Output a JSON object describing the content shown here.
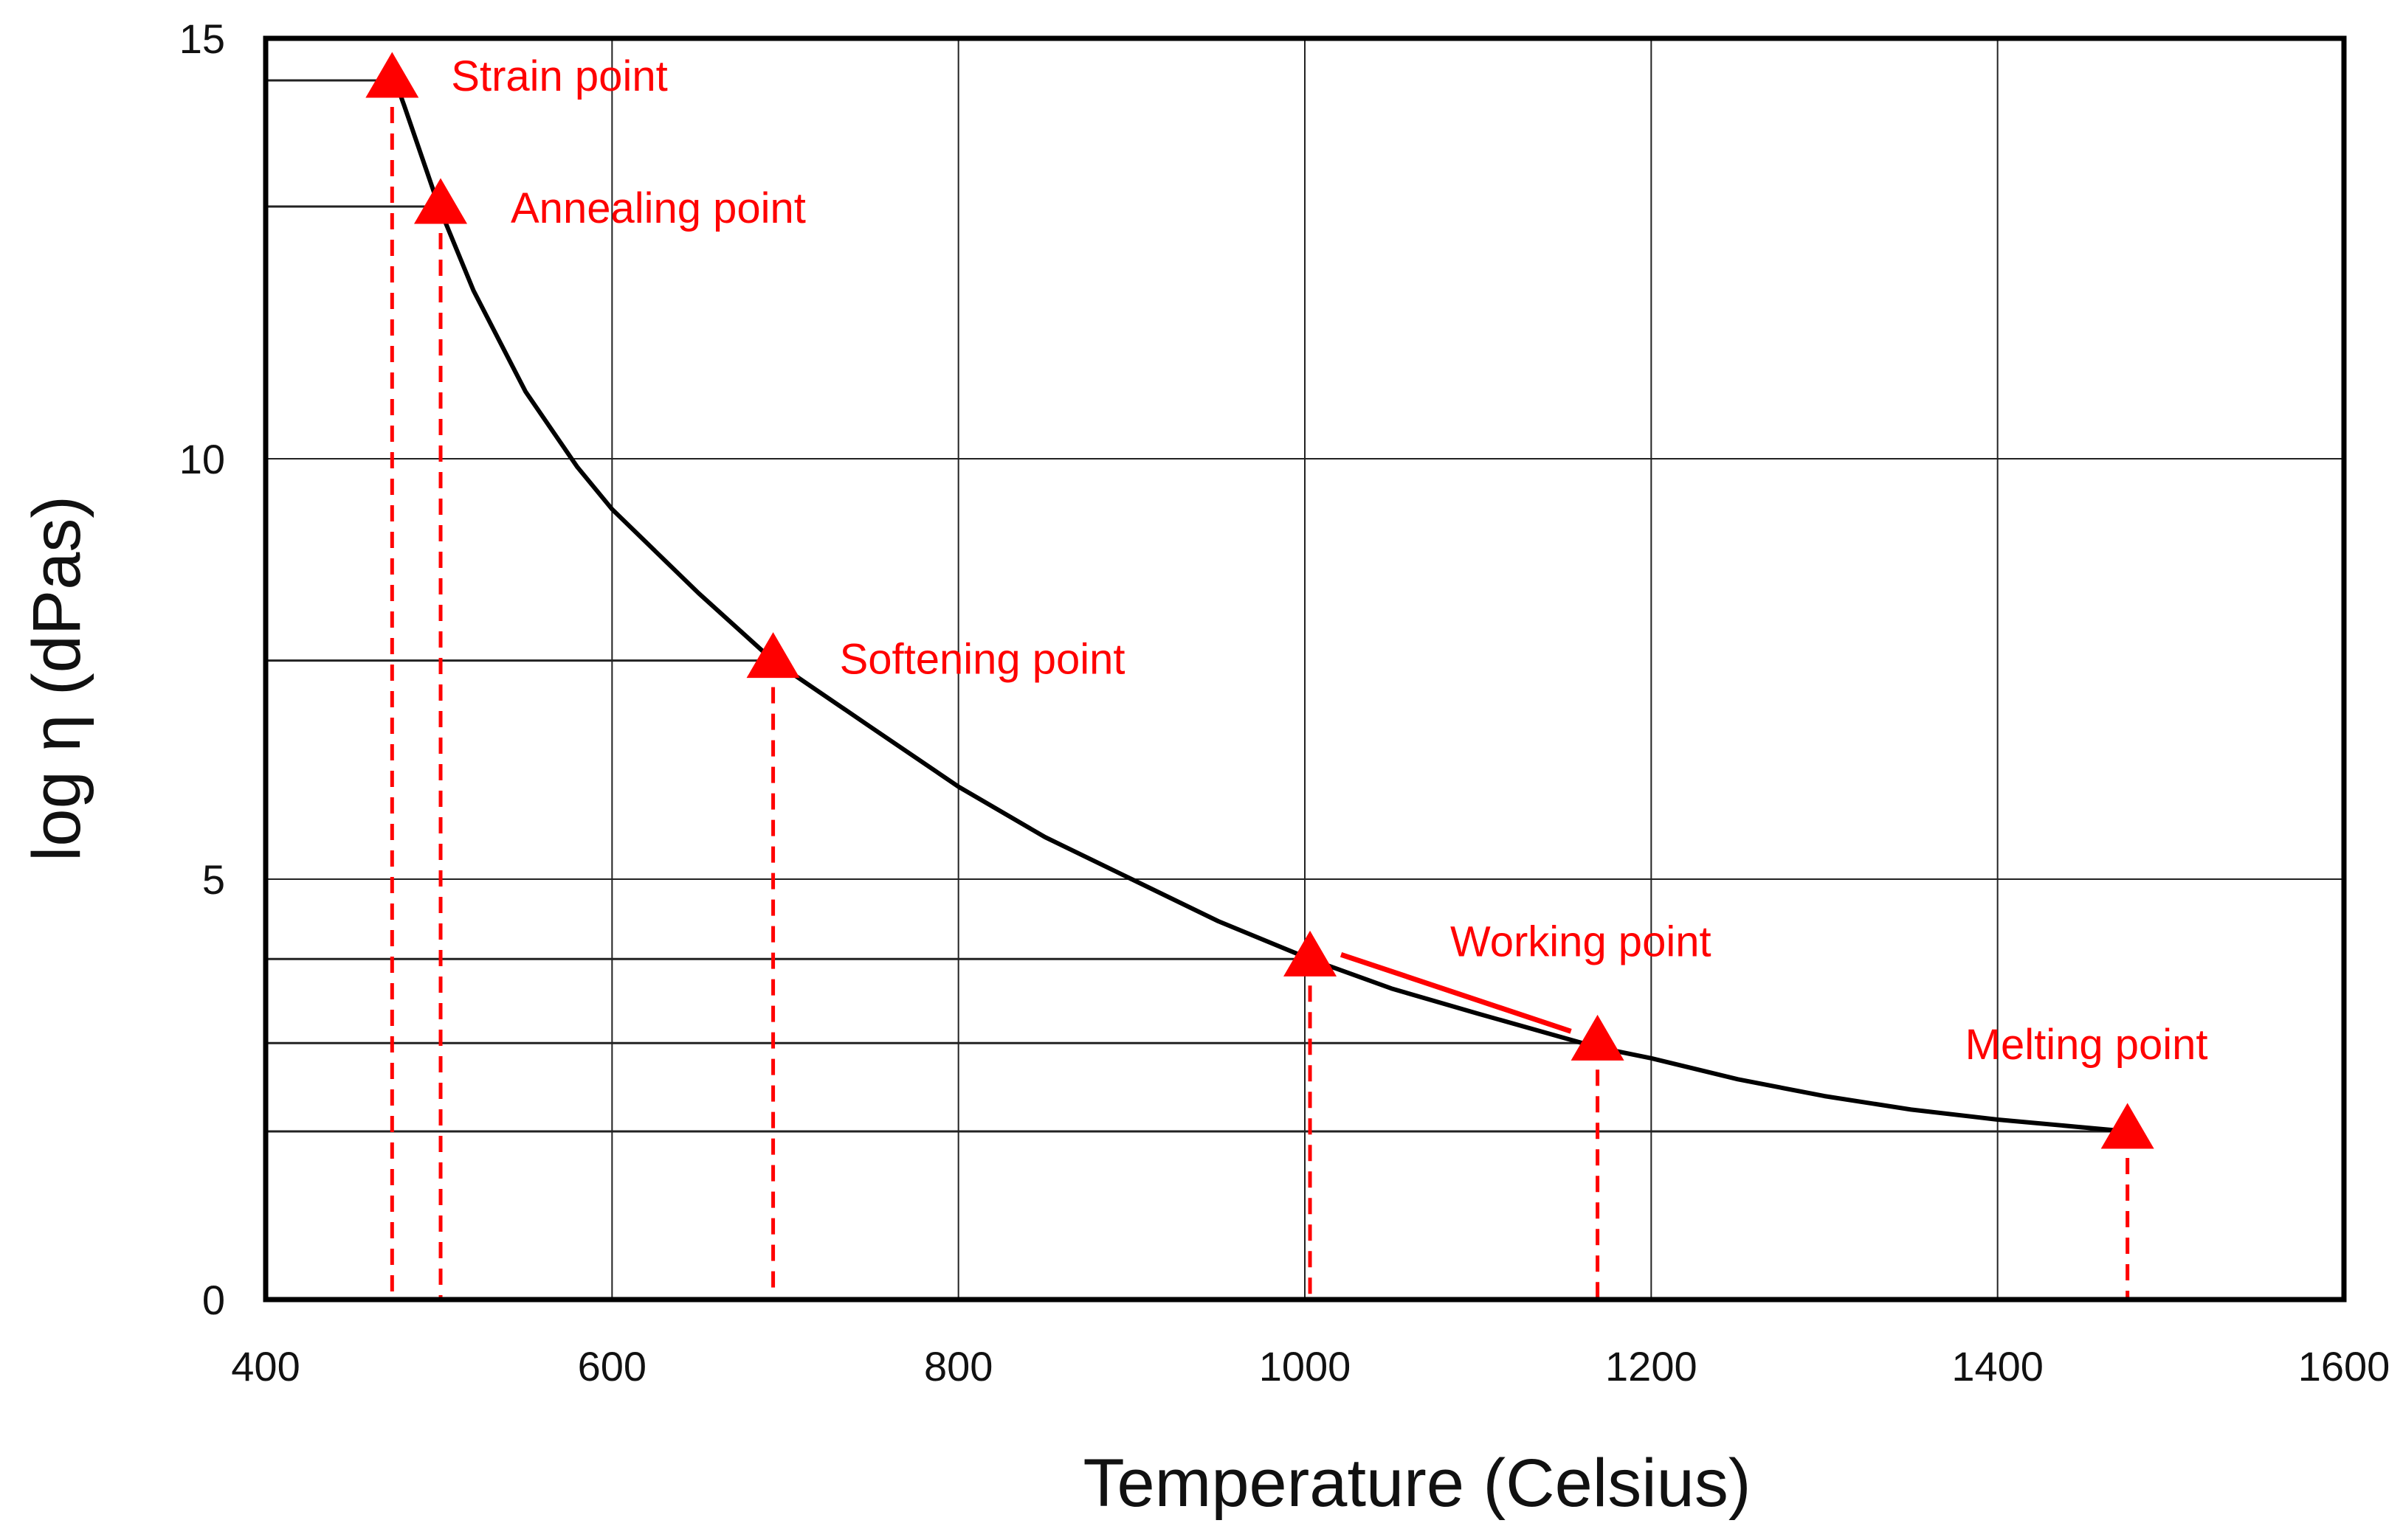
{
  "chart_data": {
    "type": "line",
    "xlabel": "Temperature (Celsius)",
    "ylabel": "log η (dPas)",
    "xlim": [
      400,
      1600
    ],
    "ylim": [
      0,
      15
    ],
    "xticks": [
      400,
      600,
      800,
      1000,
      1200,
      1400,
      1600
    ],
    "yticks": [
      0,
      5,
      10,
      15
    ],
    "grid": true,
    "series": [
      {
        "type": "line",
        "color": "#000000",
        "x": [
          473,
          480,
          490,
          500,
          520,
          550,
          580,
          600,
          650,
          693,
          750,
          800,
          850,
          900,
          950,
          1003,
          1050,
          1100,
          1169,
          1200,
          1250,
          1300,
          1350,
          1400,
          1475
        ],
        "y": [
          14.6,
          14.2,
          13.6,
          13.0,
          12.0,
          10.8,
          9.9,
          9.4,
          8.4,
          7.6,
          6.8,
          6.1,
          5.5,
          5.0,
          4.5,
          4.05,
          3.7,
          3.4,
          3.0,
          2.87,
          2.62,
          2.42,
          2.26,
          2.14,
          2.0
        ]
      }
    ],
    "points": [
      {
        "label": "Strain point",
        "x": 473,
        "y": 14.5
      },
      {
        "label": "Annealing point",
        "x": 501,
        "y": 13.0
      },
      {
        "label": "Softening point",
        "x": 693,
        "y": 7.6
      },
      {
        "label": "Working point",
        "x": 1003,
        "y": 4.05
      },
      {
        "label": "",
        "x": 1169,
        "y": 3.05
      },
      {
        "label": "Melting point",
        "x": 1475,
        "y": 2.0
      }
    ],
    "annotation_color": "#ff0000"
  }
}
